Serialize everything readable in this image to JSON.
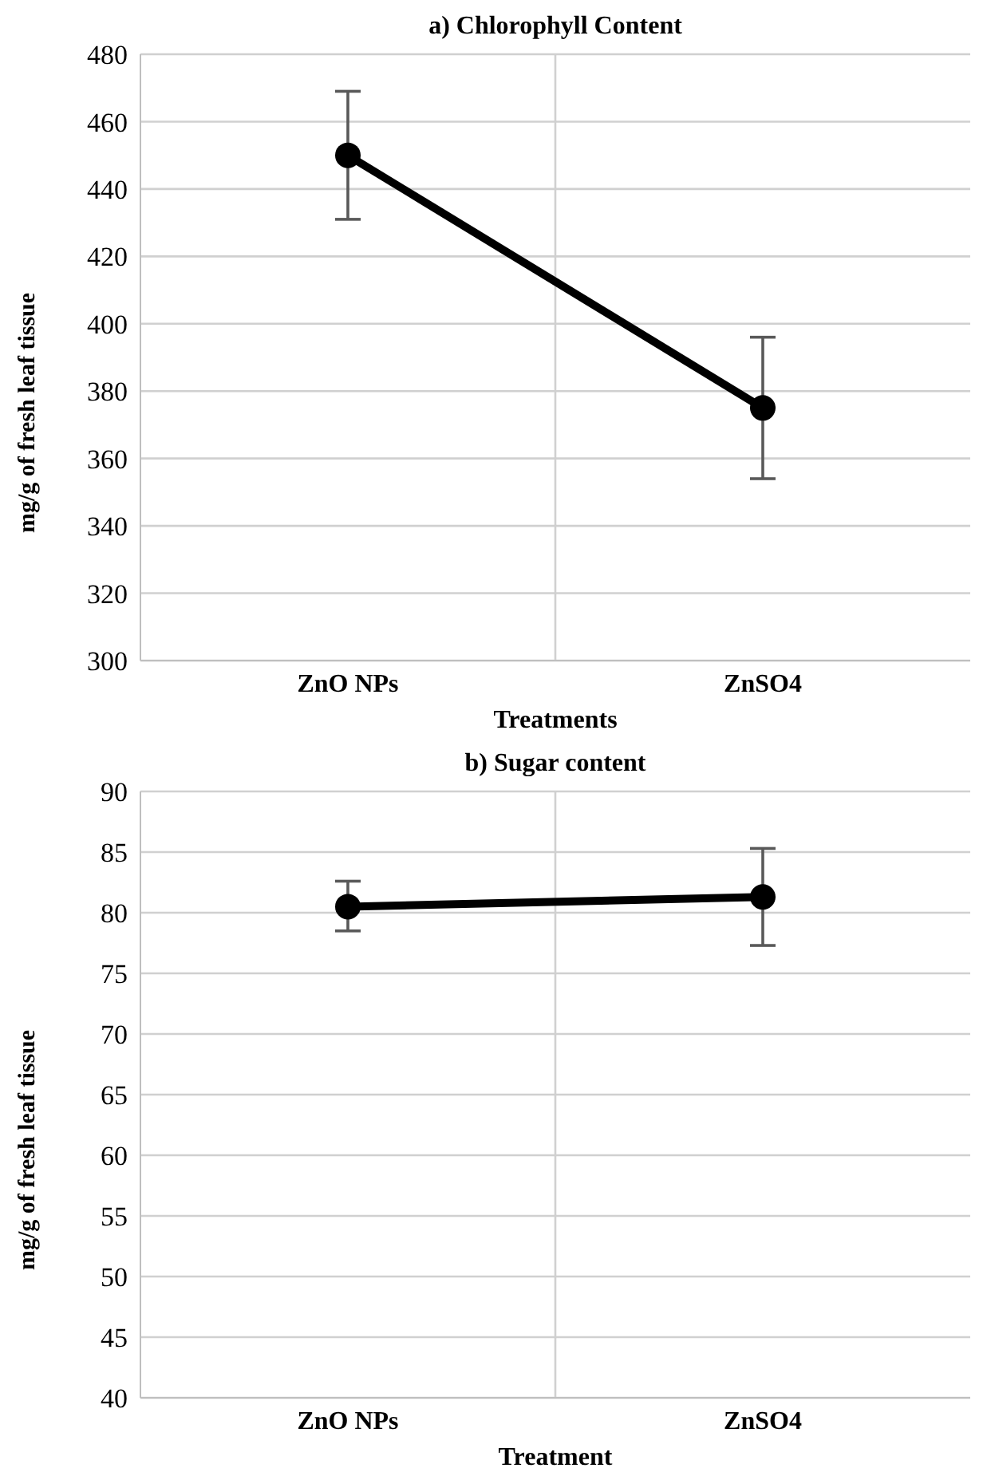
{
  "chart_data": [
    {
      "type": "line",
      "title": "a) Chlorophyll Content",
      "xlabel": "Treatments",
      "ylabel": "mg/g of fresh leaf tissue",
      "categories": [
        "ZnO NPs",
        "ZnSO4"
      ],
      "series": [
        {
          "color": "#000000",
          "values": [
            450,
            375
          ],
          "errors": [
            [
              431,
              469
            ],
            [
              354,
              396
            ]
          ]
        }
      ],
      "ylim": [
        300,
        480
      ],
      "yticks": [
        300,
        320,
        340,
        360,
        380,
        400,
        420,
        440,
        460,
        480
      ],
      "grid": true,
      "marker": "circle",
      "line_style": "solid",
      "legend": false
    },
    {
      "type": "line",
      "title": "b) Sugar content",
      "xlabel": "Treatment",
      "ylabel": "mg/g of fresh leaf tissue",
      "categories": [
        "ZnO NPs",
        "ZnSO4"
      ],
      "series": [
        {
          "color": "#000000",
          "values": [
            80.5,
            81.3
          ],
          "errors": [
            [
              78.5,
              82.6
            ],
            [
              77.3,
              85.3
            ]
          ]
        }
      ],
      "ylim": [
        40,
        90
      ],
      "yticks": [
        40,
        45,
        50,
        55,
        60,
        65,
        70,
        75,
        80,
        85,
        90
      ],
      "grid": true,
      "marker": "circle",
      "line_style": "solid",
      "legend": false
    }
  ]
}
